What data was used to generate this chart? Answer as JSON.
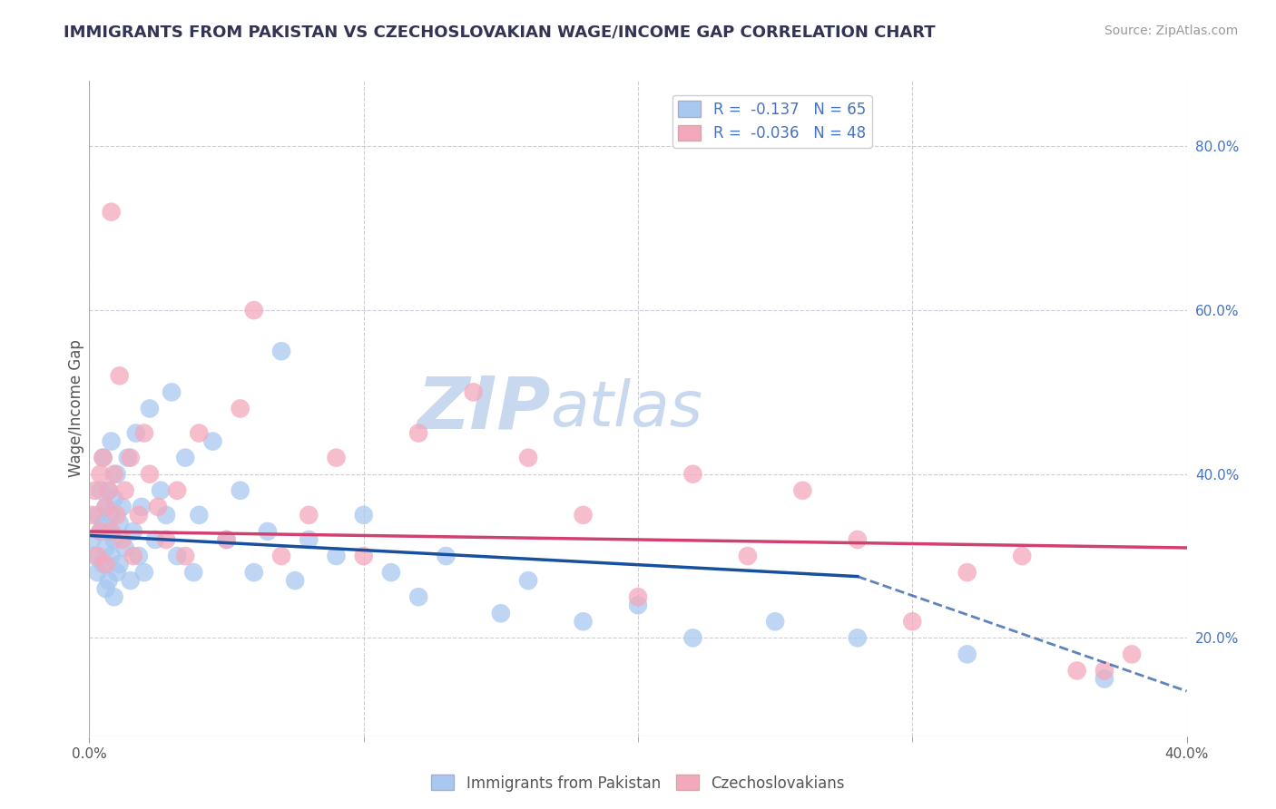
{
  "title": "IMMIGRANTS FROM PAKISTAN VS CZECHOSLOVAKIAN WAGE/INCOME GAP CORRELATION CHART",
  "source_text": "Source: ZipAtlas.com",
  "xlabel": "",
  "ylabel": "Wage/Income Gap",
  "legend_labels": [
    "Immigrants from Pakistan",
    "Czechoslovakians"
  ],
  "r_values": [
    -0.137,
    -0.036
  ],
  "n_values": [
    65,
    48
  ],
  "xlim": [
    0.0,
    0.4
  ],
  "ylim": [
    0.08,
    0.88
  ],
  "yticks_right": [
    0.2,
    0.4,
    0.6,
    0.8
  ],
  "ytick_labels_right": [
    "20.0%",
    "40.0%",
    "60.0%",
    "80.0%"
  ],
  "xticks": [
    0.0,
    0.4
  ],
  "xtick_labels": [
    "0.0%",
    "40.0%"
  ],
  "xticks_minor": [
    0.1,
    0.2,
    0.3
  ],
  "color_blue": "#A8C8F0",
  "color_pink": "#F4A8BC",
  "color_blue_line": "#1850A0",
  "color_pink_line": "#D04070",
  "title_color": "#333355",
  "source_color": "#999999",
  "legend_text_color": "#4472C4",
  "watermark_zip_color": "#C8D8EE",
  "watermark_atlas_color": "#C8D8EE",
  "background_color": "#FFFFFF",
  "grid_color": "#CCCCDD",
  "blue_line_start_x": 0.0,
  "blue_line_start_y": 0.325,
  "blue_line_solid_end_x": 0.28,
  "blue_line_solid_end_y": 0.275,
  "blue_line_end_x": 0.4,
  "blue_line_end_y": 0.135,
  "pink_line_start_x": 0.0,
  "pink_line_start_y": 0.33,
  "pink_line_end_x": 0.4,
  "pink_line_end_y": 0.31,
  "blue_scatter_x": [
    0.001,
    0.002,
    0.003,
    0.003,
    0.004,
    0.004,
    0.005,
    0.005,
    0.005,
    0.006,
    0.006,
    0.006,
    0.007,
    0.007,
    0.007,
    0.008,
    0.008,
    0.008,
    0.009,
    0.009,
    0.009,
    0.01,
    0.01,
    0.011,
    0.011,
    0.012,
    0.013,
    0.014,
    0.015,
    0.016,
    0.017,
    0.018,
    0.019,
    0.02,
    0.022,
    0.024,
    0.026,
    0.028,
    0.03,
    0.032,
    0.035,
    0.038,
    0.04,
    0.045,
    0.05,
    0.055,
    0.06,
    0.065,
    0.07,
    0.075,
    0.08,
    0.09,
    0.1,
    0.11,
    0.12,
    0.13,
    0.15,
    0.16,
    0.18,
    0.2,
    0.22,
    0.25,
    0.28,
    0.32,
    0.37
  ],
  "blue_scatter_y": [
    0.32,
    0.3,
    0.35,
    0.28,
    0.33,
    0.38,
    0.34,
    0.29,
    0.42,
    0.31,
    0.36,
    0.26,
    0.33,
    0.38,
    0.27,
    0.35,
    0.3,
    0.44,
    0.32,
    0.37,
    0.25,
    0.4,
    0.28,
    0.34,
    0.29,
    0.36,
    0.31,
    0.42,
    0.27,
    0.33,
    0.45,
    0.3,
    0.36,
    0.28,
    0.48,
    0.32,
    0.38,
    0.35,
    0.5,
    0.3,
    0.42,
    0.28,
    0.35,
    0.44,
    0.32,
    0.38,
    0.28,
    0.33,
    0.55,
    0.27,
    0.32,
    0.3,
    0.35,
    0.28,
    0.25,
    0.3,
    0.23,
    0.27,
    0.22,
    0.24,
    0.2,
    0.22,
    0.2,
    0.18,
    0.15
  ],
  "pink_scatter_x": [
    0.001,
    0.002,
    0.003,
    0.004,
    0.004,
    0.005,
    0.006,
    0.006,
    0.007,
    0.008,
    0.008,
    0.009,
    0.01,
    0.011,
    0.012,
    0.013,
    0.015,
    0.016,
    0.018,
    0.02,
    0.022,
    0.025,
    0.028,
    0.032,
    0.035,
    0.04,
    0.05,
    0.055,
    0.06,
    0.07,
    0.08,
    0.09,
    0.1,
    0.12,
    0.14,
    0.16,
    0.18,
    0.2,
    0.22,
    0.24,
    0.26,
    0.28,
    0.3,
    0.32,
    0.34,
    0.36,
    0.37,
    0.38
  ],
  "pink_scatter_y": [
    0.35,
    0.38,
    0.3,
    0.4,
    0.33,
    0.42,
    0.36,
    0.29,
    0.38,
    0.33,
    0.72,
    0.4,
    0.35,
    0.52,
    0.32,
    0.38,
    0.42,
    0.3,
    0.35,
    0.45,
    0.4,
    0.36,
    0.32,
    0.38,
    0.3,
    0.45,
    0.32,
    0.48,
    0.6,
    0.3,
    0.35,
    0.42,
    0.3,
    0.45,
    0.5,
    0.42,
    0.35,
    0.25,
    0.4,
    0.3,
    0.38,
    0.32,
    0.22,
    0.28,
    0.3,
    0.16,
    0.16,
    0.18
  ]
}
